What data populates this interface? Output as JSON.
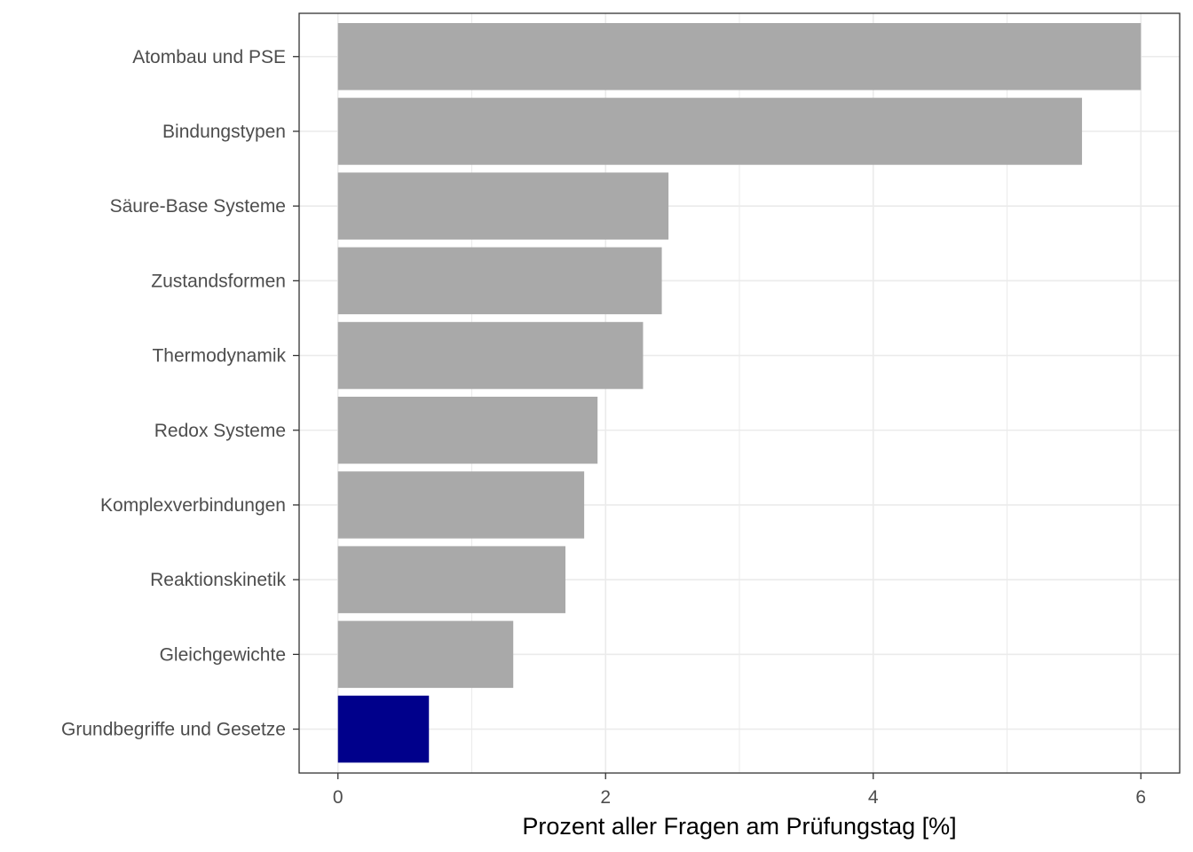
{
  "chart_data": {
    "type": "bar",
    "orientation": "horizontal",
    "categories": [
      "Atombau und PSE",
      "Bindungstypen",
      "Säure-Base Systeme",
      "Zustandsformen",
      "Thermodynamik",
      "Redox Systeme",
      "Komplexverbindungen",
      "Reaktionskinetik",
      "Gleichgewichte",
      "Grundbegriffe und Gesetze"
    ],
    "values": [
      6.0,
      5.56,
      2.47,
      2.42,
      2.28,
      1.94,
      1.84,
      1.7,
      1.31,
      0.68
    ],
    "highlight_category": "Grundbegriffe und Gesetze",
    "xlabel": "Prozent aller Fragen am Prüfungstag [%]",
    "ylabel": "",
    "xlim": [
      -0.29,
      6.29
    ],
    "xticks": [
      "0",
      "2",
      "4",
      "6"
    ],
    "grid": true,
    "colors": {
      "bar": "#a9a9a9",
      "highlight": "#00008b",
      "grid": "#ebebeb",
      "panel_border": "#333333",
      "tick_text": "#4d4d4d"
    }
  }
}
